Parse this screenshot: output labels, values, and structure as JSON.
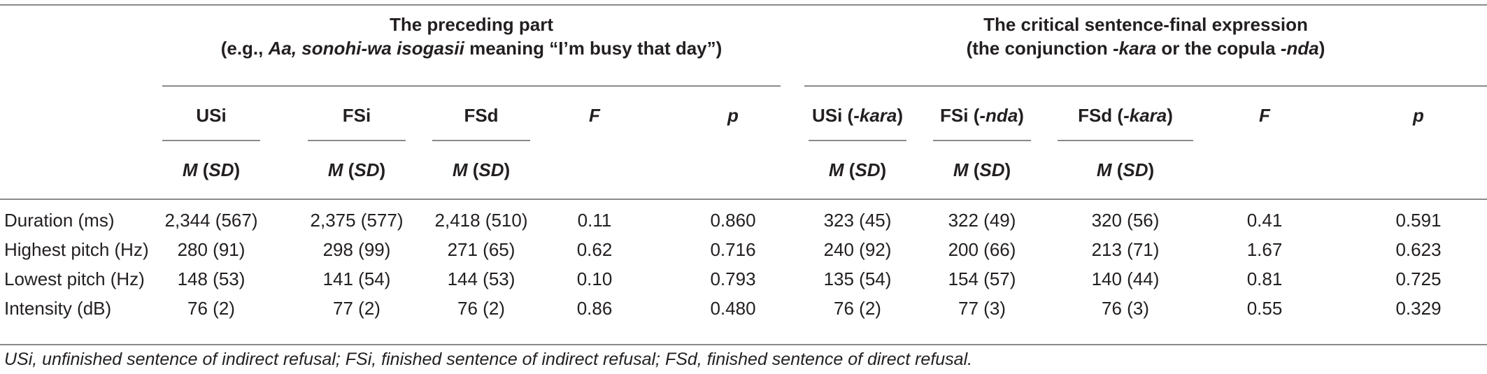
{
  "table": {
    "groups": [
      {
        "title": "The preceding part",
        "subtitle_prefix": "(e.g., ",
        "subtitle_em1": "Aa, sonohi-wa isogasii",
        "subtitle_mid": " meaning “I’m busy that day”)"
      },
      {
        "title": "The critical sentence-final expression",
        "subtitle_prefix": "(the conjunction ",
        "subtitle_em1": "-kara",
        "subtitle_mid": " or the copula ",
        "subtitle_em2": "-nda",
        "subtitle_suffix": ")"
      }
    ],
    "col_heads": {
      "usi": "USi",
      "fsi": "FSi",
      "fsd": "FSd",
      "f": "F",
      "p": "p",
      "usi_kara_a": "USi (",
      "usi_kara_b": "-kara",
      "usi_kara_c": ")",
      "fsi_nda_a": "FSi (",
      "fsi_nda_b": "-nda",
      "fsi_nda_c": ")",
      "fsd_kara_a": "FSd (",
      "fsd_kara_b": "-kara",
      "fsd_kara_c": ")",
      "m": "M",
      "sd_open": " (",
      "sd": "SD",
      "sd_close": ")"
    },
    "rows": [
      {
        "label": "Duration (ms)",
        "cells": [
          "2,344 (567)",
          "2,375 (577)",
          "2,418 (510)",
          "0.11",
          "0.860",
          "323 (45)",
          "322 (49)",
          "320 (56)",
          "0.41",
          "0.591"
        ]
      },
      {
        "label": "Highest pitch (Hz)",
        "cells": [
          "280 (91)",
          "298 (99)",
          "271 (65)",
          "0.62",
          "0.716",
          "240 (92)",
          "200 (66)",
          "213 (71)",
          "1.67",
          "0.623"
        ]
      },
      {
        "label": "Lowest pitch (Hz)",
        "cells": [
          "148 (53)",
          "141 (54)",
          "144 (53)",
          "0.10",
          "0.793",
          "135 (54)",
          "154 (57)",
          "140 (44)",
          "0.81",
          "0.725"
        ]
      },
      {
        "label": "Intensity (dB)",
        "cells": [
          "76 (2)",
          "77 (2)",
          "76 (2)",
          "0.86",
          "0.480",
          "76 (2)",
          "77 (3)",
          "76 (3)",
          "0.55",
          "0.329"
        ]
      }
    ],
    "footnote": "USi, unfinished sentence of indirect refusal; FSi, finished sentence of indirect refusal; FSd, finished sentence of direct refusal."
  }
}
